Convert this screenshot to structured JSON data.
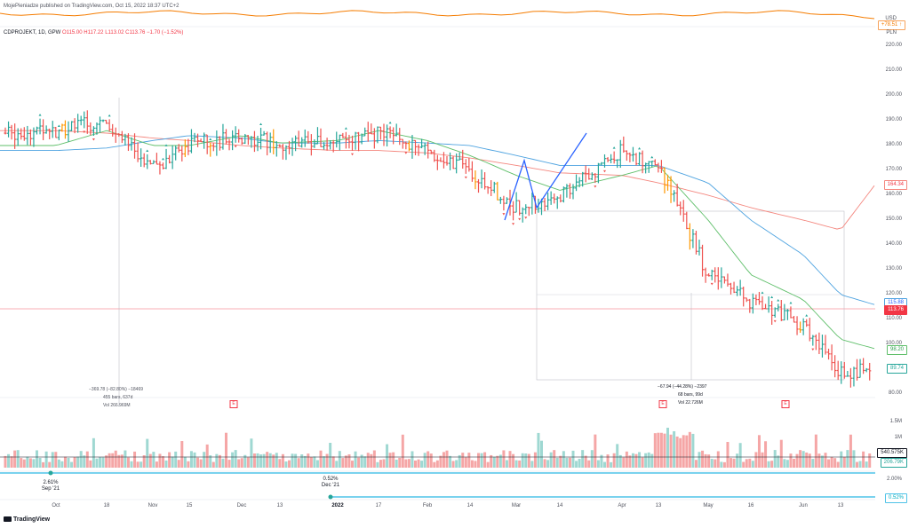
{
  "header": {
    "publisher": "MojePieniadze published on TradingView.com, Oct 15, 2022 18:37 UTC+2"
  },
  "top_panel": {
    "currency": "USD",
    "value_badge": "+78.51 ↑"
  },
  "legend": {
    "symbol": "CDPROJEKT, 1D, GPW",
    "open": "O115.00",
    "high": "H117.22",
    "low": "L113.02",
    "close": "C113.76",
    "change": "−1.70 (−1.52%)"
  },
  "price_axis": {
    "currency_label": "PLN",
    "labels": [
      "220.00",
      "210.00",
      "200.00",
      "190.00",
      "180.00",
      "170.00",
      "160.00",
      "150.00",
      "140.00",
      "130.00",
      "120.00",
      "110.00",
      "100.00",
      "90.00",
      "80.00"
    ]
  },
  "badges": {
    "sma200": "164.34",
    "sma100": "115.88",
    "last_price": "113.76",
    "sma50": "98.20",
    "low": "89.74",
    "volume_ma": "540.575K",
    "volume_last": "206.79K",
    "indicator": "0.52%"
  },
  "volume_axis": {
    "labels": [
      "1.5M",
      "1M"
    ]
  },
  "indicator_axis": {
    "labels": [
      "2.00%"
    ]
  },
  "time_axis": {
    "labels": [
      "Oct",
      "18",
      "Nov",
      "15",
      "Dec",
      "13",
      "2022",
      "17",
      "Feb",
      "14",
      "Mar",
      "14",
      "Apr",
      "13",
      "May",
      "16",
      "Jun",
      "13"
    ]
  },
  "annotations": {
    "range_left": [
      "−369.78 (−82.80%) −18469",
      "455 bars, 637d",
      "Vol 266.969M"
    ],
    "range_right": [
      "−67.94 (−44.28%) −2397",
      "68 bars, 99d",
      "Vol 22.726M"
    ],
    "bubble_sep": [
      "2.61%",
      "Sep '21"
    ],
    "bubble_dec": [
      "0.52%",
      "Dec '21"
    ]
  },
  "earnings_marker": "E",
  "footer": {
    "brand": "TradingView"
  },
  "colors": {
    "up": "#26a69a",
    "down": "#ef5350",
    "orange": "#ff9800",
    "sma200": "#f4877f",
    "sma100": "#4ea3e0",
    "sma50": "#5fbf6a",
    "pattern": "#2962ff"
  },
  "chart_data": {
    "type": "line",
    "title": "CDPROJEKT, 1D, GPW",
    "ylim": [
      80,
      225
    ],
    "series": [
      {
        "name": "CDPROJEKT",
        "x": [
          "Oct",
          "18",
          "Nov",
          "15",
          "Dec",
          "13",
          "2022",
          "17",
          "Feb",
          "14",
          "Mar",
          "14",
          "Apr",
          "13",
          "May",
          "16",
          "Jun",
          "13"
        ],
        "y": [
          186,
          190,
          171,
          181,
          183,
          181,
          183,
          185,
          178,
          170,
          155,
          160,
          178,
          172,
          128,
          117,
          108,
          89
        ]
      },
      {
        "x": [
          "Oct",
          "18",
          "Nov",
          "15",
          "Dec",
          "13",
          "2022",
          "17",
          "Feb",
          "14",
          "Mar",
          "14",
          "Apr",
          "13",
          "May",
          "16",
          "Jun",
          "13"
        ],
        "y": [
          186,
          185,
          183,
          182,
          180,
          179,
          178,
          178,
          177,
          175,
          172,
          169,
          168,
          165,
          160,
          155,
          150,
          146
        ]
      },
      {
        "x": [
          "Oct",
          "18",
          "Nov",
          "15",
          "Dec",
          "13",
          "2022",
          "17",
          "Feb",
          "14",
          "Mar",
          "14",
          "Apr",
          "13",
          "May",
          "16",
          "Jun",
          "13"
        ],
        "y": [
          178,
          179,
          182,
          184,
          183,
          181,
          181,
          182,
          181,
          180,
          176,
          172,
          172,
          172,
          165,
          150,
          136,
          120
        ]
      },
      {
        "x": [
          "Oct",
          "18",
          "Nov",
          "15",
          "Dec",
          "13",
          "2022",
          "17",
          "Feb",
          "14",
          "Mar",
          "14",
          "Apr",
          "13",
          "May",
          "16",
          "Jun",
          "13"
        ],
        "y": [
          180,
          186,
          180,
          180,
          184,
          181,
          182,
          186,
          182,
          176,
          168,
          162,
          168,
          172,
          150,
          128,
          118,
          102
        ]
      }
    ]
  }
}
